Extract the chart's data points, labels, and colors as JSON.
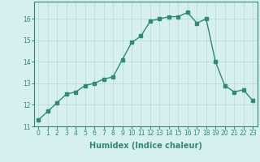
{
  "x": [
    0,
    1,
    2,
    3,
    4,
    5,
    6,
    7,
    8,
    9,
    10,
    11,
    12,
    13,
    14,
    15,
    16,
    17,
    18,
    19,
    20,
    21,
    22,
    23
  ],
  "y": [
    11.3,
    11.7,
    12.1,
    12.5,
    12.6,
    12.9,
    13.0,
    13.2,
    13.3,
    14.1,
    14.9,
    15.2,
    15.9,
    16.0,
    16.1,
    16.1,
    16.3,
    15.8,
    16.0,
    14.0,
    12.9,
    12.6,
    12.7,
    12.2
  ],
  "line_color": "#2e8b74",
  "marker": "s",
  "marker_size": 2.5,
  "bg_color": "#d6efef",
  "grid_color": "#b8d8d8",
  "xlabel": "Humidex (Indice chaleur)",
  "xlim": [
    -0.5,
    23.5
  ],
  "ylim": [
    11,
    16.8
  ],
  "yticks": [
    11,
    12,
    13,
    14,
    15,
    16
  ],
  "xticks": [
    0,
    1,
    2,
    3,
    4,
    5,
    6,
    7,
    8,
    9,
    10,
    11,
    12,
    13,
    14,
    15,
    16,
    17,
    18,
    19,
    20,
    21,
    22,
    23
  ],
  "xtick_labels": [
    "0",
    "1",
    "2",
    "3",
    "4",
    "5",
    "6",
    "7",
    "8",
    "9",
    "10",
    "11",
    "12",
    "13",
    "14",
    "15",
    "16",
    "17",
    "18",
    "19",
    "20",
    "21",
    "22",
    "23"
  ],
  "tick_fontsize": 5.5,
  "xlabel_fontsize": 7,
  "linewidth": 1.0
}
